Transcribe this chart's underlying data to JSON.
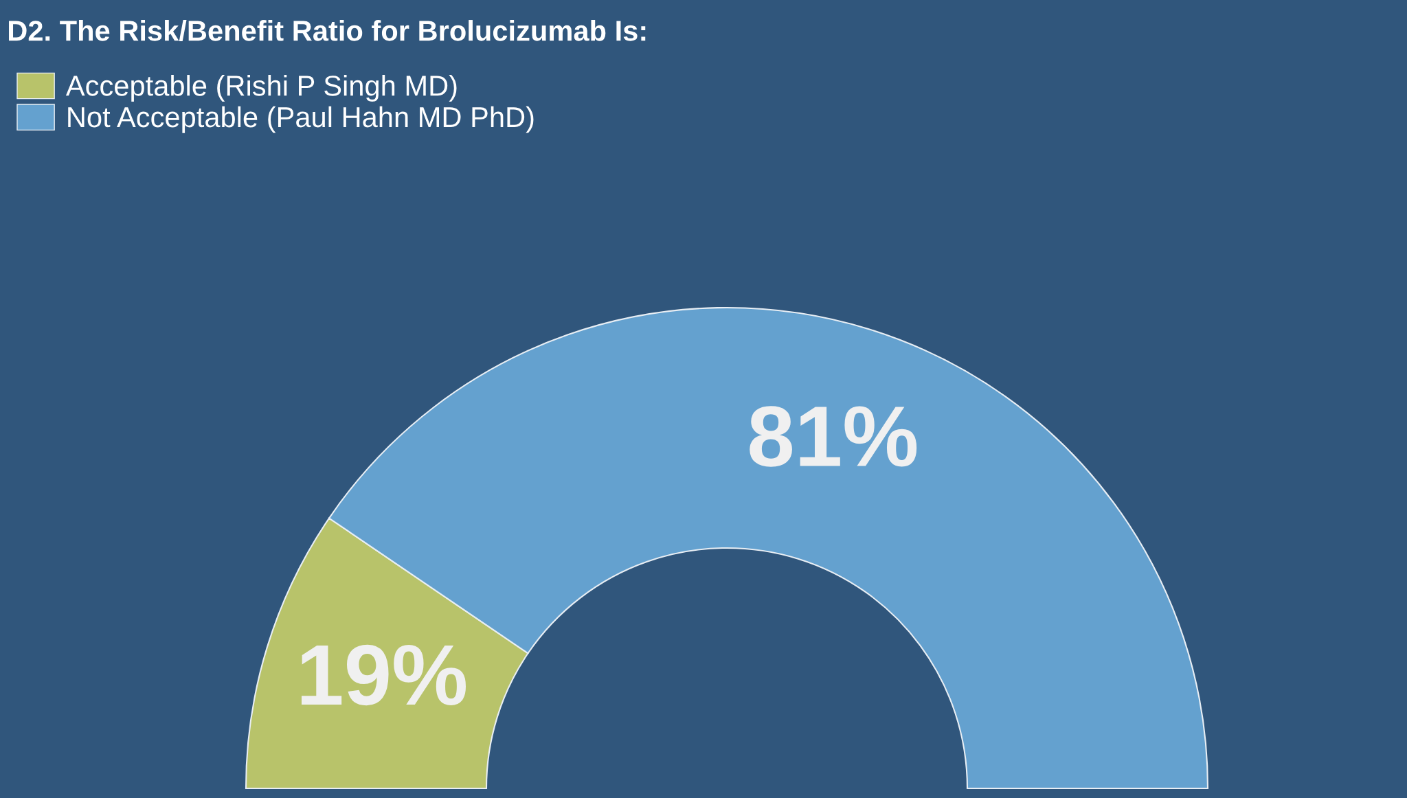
{
  "chart_data": {
    "type": "donut",
    "title": "D2. The Risk/Benefit Ratio for Brolucizumab Is:",
    "categories": [
      "Acceptable (Rishi P Singh MD)",
      "Not Acceptable (Paul Hahn MD PhD)"
    ],
    "values": [
      19,
      81
    ],
    "colors": [
      "#b8c36a",
      "#64a1cf"
    ],
    "value_labels": [
      "19%",
      "81%"
    ],
    "legend": "top left"
  }
}
